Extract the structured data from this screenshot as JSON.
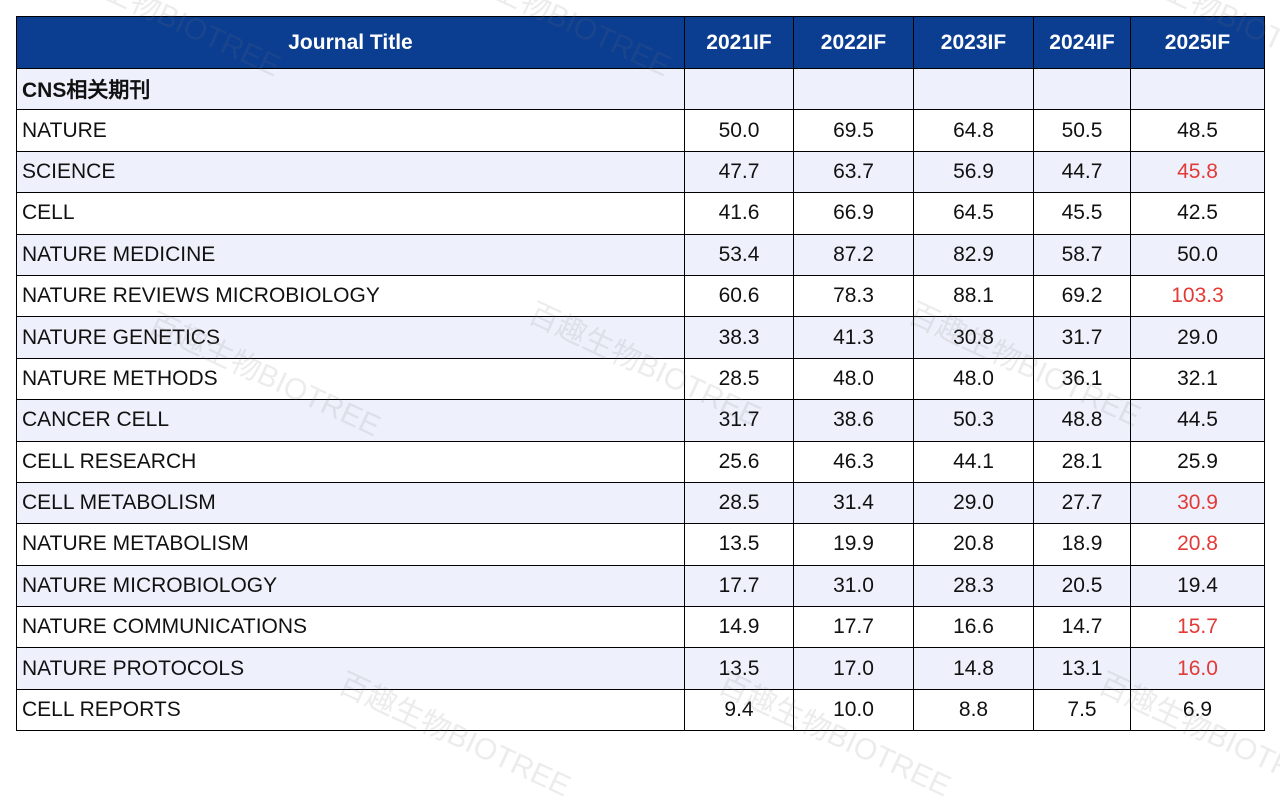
{
  "table": {
    "header": [
      "Journal Title",
      "2021IF",
      "2022IF",
      "2023IF",
      "2024IF",
      "2025IF"
    ],
    "section": "CNS相关期刊",
    "highlight_color": "#e23a36",
    "rows": [
      {
        "cells": [
          "NATURE",
          "50.0",
          "69.5",
          "64.8",
          "50.5",
          "48.5"
        ],
        "highlight": false
      },
      {
        "cells": [
          "SCIENCE",
          "47.7",
          "63.7",
          "56.9",
          "44.7",
          "45.8"
        ],
        "highlight": true
      },
      {
        "cells": [
          "CELL",
          "41.6",
          "66.9",
          "64.5",
          "45.5",
          "42.5"
        ],
        "highlight": false
      },
      {
        "cells": [
          "NATURE MEDICINE",
          "53.4",
          "87.2",
          "82.9",
          "58.7",
          "50.0"
        ],
        "highlight": false
      },
      {
        "cells": [
          "NATURE REVIEWS MICROBIOLOGY",
          "60.6",
          "78.3",
          "88.1",
          "69.2",
          "103.3"
        ],
        "highlight": true
      },
      {
        "cells": [
          "NATURE GENETICS",
          "38.3",
          "41.3",
          "30.8",
          "31.7",
          "29.0"
        ],
        "highlight": false
      },
      {
        "cells": [
          "NATURE METHODS",
          "28.5",
          "48.0",
          "48.0",
          "36.1",
          "32.1"
        ],
        "highlight": false
      },
      {
        "cells": [
          "CANCER CELL",
          "31.7",
          "38.6",
          "50.3",
          "48.8",
          "44.5"
        ],
        "highlight": false
      },
      {
        "cells": [
          "CELL RESEARCH",
          "25.6",
          "46.3",
          "44.1",
          "28.1",
          "25.9"
        ],
        "highlight": false
      },
      {
        "cells": [
          "CELL METABOLISM",
          "28.5",
          "31.4",
          "29.0",
          "27.7",
          "30.9"
        ],
        "highlight": true
      },
      {
        "cells": [
          "NATURE METABOLISM",
          "13.5",
          "19.9",
          "20.8",
          "18.9",
          "20.8"
        ],
        "highlight": true
      },
      {
        "cells": [
          "NATURE MICROBIOLOGY",
          "17.7",
          "31.0",
          "28.3",
          "20.5",
          "19.4"
        ],
        "highlight": false
      },
      {
        "cells": [
          "NATURE COMMUNICATIONS",
          "14.9",
          "17.7",
          "16.6",
          "14.7",
          "15.7"
        ],
        "highlight": true
      },
      {
        "cells": [
          "NATURE PROTOCOLS",
          "13.5",
          "17.0",
          "14.8",
          "13.1",
          "16.0"
        ],
        "highlight": true
      },
      {
        "cells": [
          "CELL REPORTS",
          "9.4",
          "10.0",
          "8.8",
          "7.5",
          "6.9"
        ],
        "highlight": false
      }
    ]
  },
  "watermark": "百趣生物BIOTREE"
}
